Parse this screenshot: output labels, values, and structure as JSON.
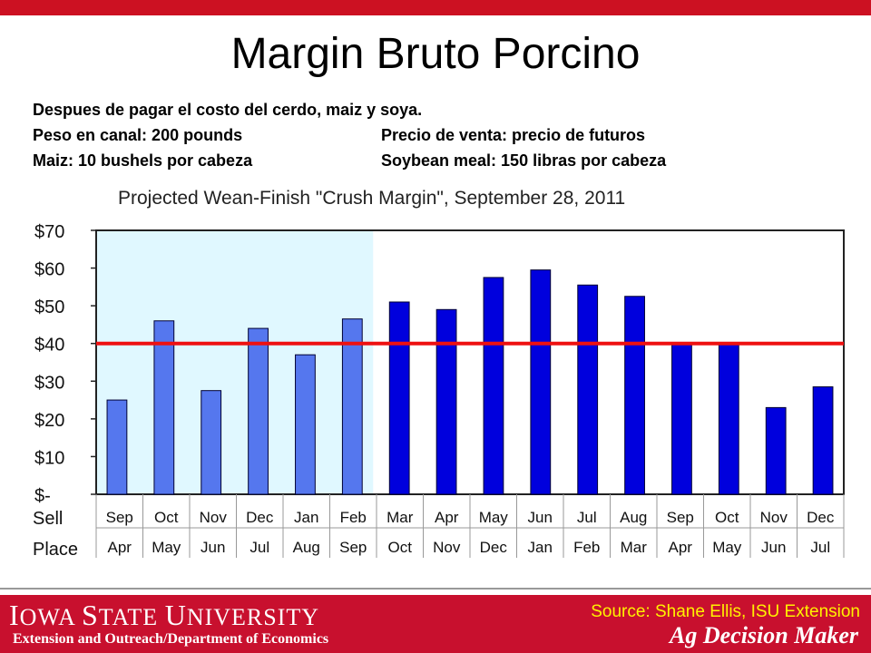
{
  "slide": {
    "title": "Margin Bruto Porcino",
    "line1": "Despues de pagar el costo del cerdo, maiz y soya.",
    "line2a": "Peso en canal:  200 pounds",
    "line2b": "Precio de venta:  precio de futuros",
    "line3a": "Maiz:  10 bushels por cabeza",
    "line3b": "Soybean meal:  150 libras por cabeza"
  },
  "footer": {
    "university_first": "I",
    "university_rest1": "OWA ",
    "university_s": "S",
    "university_rest2": "TATE ",
    "university_u": "U",
    "university_rest3": "NIVERSITY",
    "department": "Extension and Outreach/Department  of Economics",
    "source": "Source: Shane Ellis, ISU Extension",
    "brand": "Ag Decision Maker"
  },
  "colors": {
    "top_bar": "#cc1122",
    "footer_bg": "#c8102e",
    "historical_bar": "#5577ee",
    "projected_bar": "#0000dd",
    "reference_line": "#ee1111",
    "shaded_region": "#e0f8ff",
    "source_text": "#fff200"
  },
  "chart_data": {
    "type": "bar",
    "title": "Projected Wean-Finish \"Crush Margin\", September 28, 2011",
    "yticks": [
      "$70",
      "$60",
      "$50",
      "$40",
      "$30",
      "$20",
      "$10",
      "$-"
    ],
    "ylim": [
      0,
      70
    ],
    "row_labels": [
      "Sell",
      "Place"
    ],
    "sell": [
      "Sep",
      "Oct",
      "Nov",
      "Dec",
      "Jan",
      "Feb",
      "Mar",
      "Apr",
      "May",
      "Jun",
      "Jul",
      "Aug",
      "Sep",
      "Oct",
      "Nov",
      "Dec"
    ],
    "place": [
      "Apr",
      "May",
      "Jun",
      "Jul",
      "Aug",
      "Sep",
      "Oct",
      "Nov",
      "Dec",
      "Jan",
      "Feb",
      "Mar",
      "Apr",
      "May",
      "Jun",
      "Jul"
    ],
    "values": [
      25,
      46,
      27.5,
      44,
      37,
      46.5,
      51,
      49,
      57.5,
      59.5,
      55.5,
      52.5,
      40,
      40,
      23,
      28.5
    ],
    "historical_count": 6,
    "reference_value": 40,
    "grid": false
  }
}
